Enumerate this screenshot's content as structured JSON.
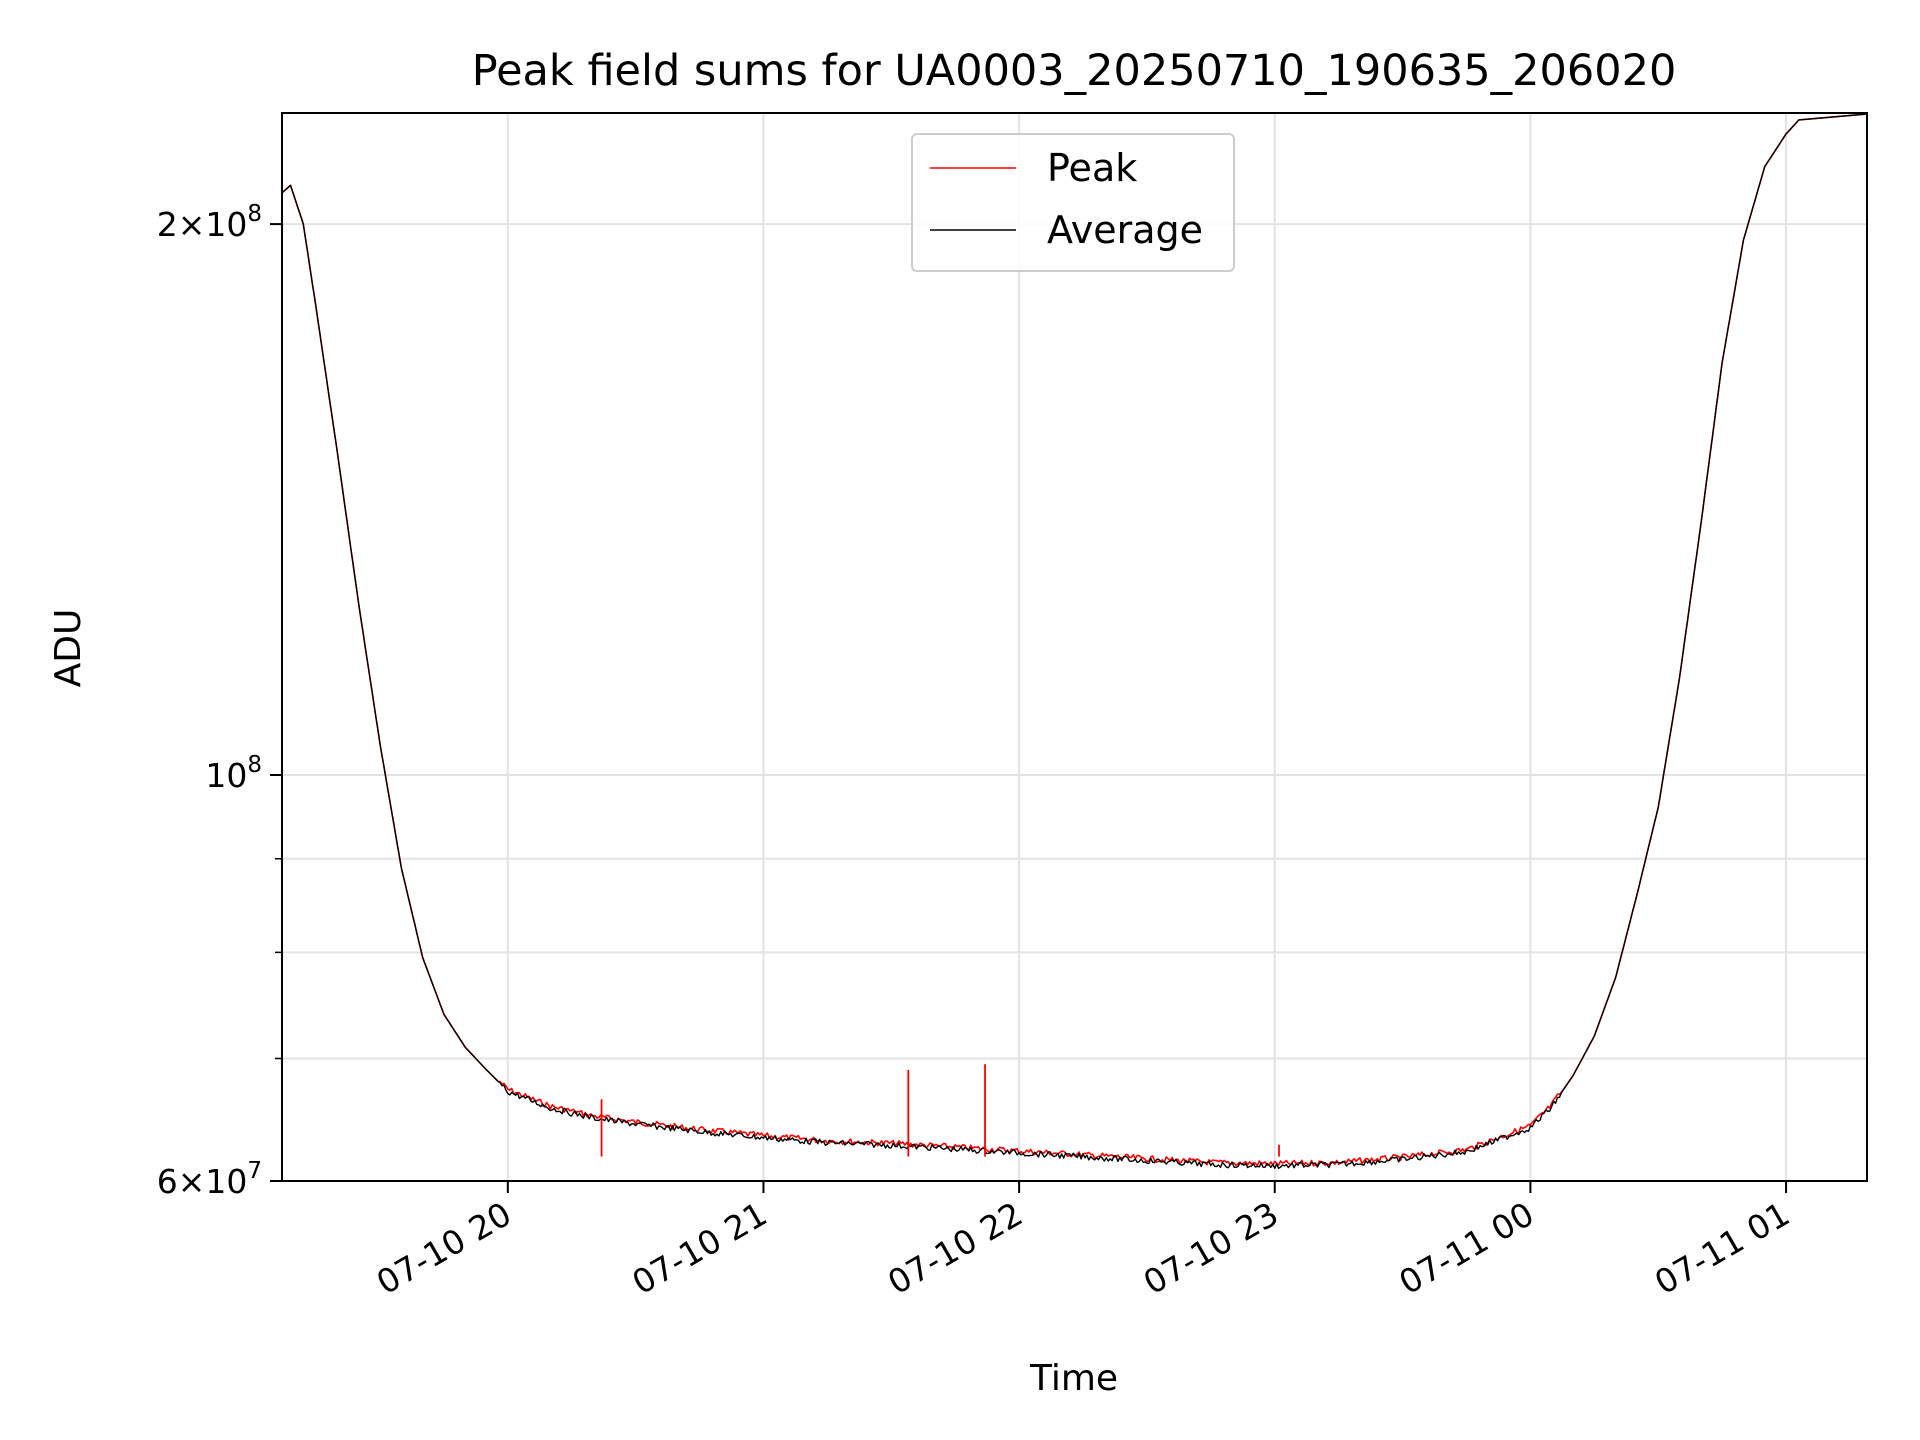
{
  "chart_data": {
    "type": "line",
    "title": "Peak field sums for UA0003_20250710_190635_206020",
    "xlabel": "Time",
    "ylabel": "ADU",
    "yscale": "log",
    "ylim": [
      60000000,
      230000000
    ],
    "xlim": [
      "2025-07-10 19:07",
      "2025-07-11 01:19"
    ],
    "grid": true,
    "legend_position": "top-center",
    "x_ticks": [
      {
        "t": "2025-07-10 20:00",
        "label": "07-10 20"
      },
      {
        "t": "2025-07-10 21:00",
        "label": "07-10 21"
      },
      {
        "t": "2025-07-10 22:00",
        "label": "07-10 22"
      },
      {
        "t": "2025-07-10 23:00",
        "label": "07-10 23"
      },
      {
        "t": "2025-07-11 00:00",
        "label": "07-11 00"
      },
      {
        "t": "2025-07-11 01:00",
        "label": "07-11 01"
      }
    ],
    "y_ticks_major": [
      {
        "value": 60000000,
        "base": "6",
        "exp": "7"
      },
      {
        "value": 100000000,
        "base": "",
        "exp": "8"
      },
      {
        "value": 200000000,
        "base": "2",
        "exp": "8"
      }
    ],
    "y_ticks_minor": [
      70000000,
      80000000,
      90000000
    ],
    "x": [
      "2025-07-10 19:07",
      "2025-07-10 19:09",
      "2025-07-10 19:12",
      "2025-07-10 19:15",
      "2025-07-10 19:20",
      "2025-07-10 19:25",
      "2025-07-10 19:30",
      "2025-07-10 19:35",
      "2025-07-10 19:40",
      "2025-07-10 19:45",
      "2025-07-10 19:50",
      "2025-07-10 19:55",
      "2025-07-10 20:00",
      "2025-07-10 20:10",
      "2025-07-10 20:20",
      "2025-07-10 20:30",
      "2025-07-10 20:45",
      "2025-07-10 21:00",
      "2025-07-10 21:15",
      "2025-07-10 21:30",
      "2025-07-10 21:45",
      "2025-07-10 22:00",
      "2025-07-10 22:15",
      "2025-07-10 22:30",
      "2025-07-10 22:45",
      "2025-07-10 23:00",
      "2025-07-10 23:15",
      "2025-07-10 23:30",
      "2025-07-10 23:45",
      "2025-07-11 00:00",
      "2025-07-11 00:05",
      "2025-07-11 00:10",
      "2025-07-11 00:15",
      "2025-07-11 00:20",
      "2025-07-11 00:25",
      "2025-07-11 00:30",
      "2025-07-11 00:35",
      "2025-07-11 00:40",
      "2025-07-11 00:45",
      "2025-07-11 00:50",
      "2025-07-11 00:55",
      "2025-07-11 01:00",
      "2025-07-11 01:03"
    ],
    "series": [
      {
        "name": "Peak",
        "color": "#ff0000",
        "values": [
          208000000,
          210000000,
          200000000,
          180000000,
          150000000,
          124000000,
          104000000,
          89000000,
          79500000,
          74000000,
          71000000,
          69000000,
          67200000,
          65800000,
          65000000,
          64500000,
          63900000,
          63400000,
          63000000,
          62800000,
          62500000,
          62200000,
          61900000,
          61600000,
          61300000,
          61200000,
          61300000,
          61700000,
          62300000,
          64200000,
          65900000,
          68500000,
          72000000,
          77500000,
          86000000,
          96000000,
          113000000,
          137000000,
          168000000,
          196000000,
          215000000,
          224000000,
          228000000
        ],
        "spikes": [
          {
            "x": "2025-07-10 20:22",
            "y": 66500000
          },
          {
            "x": "2025-07-10 21:34",
            "y": 69000000
          },
          {
            "x": "2025-07-10 21:52",
            "y": 69500000
          },
          {
            "x": "2025-07-10 23:01",
            "y": 62800000
          }
        ]
      },
      {
        "name": "Average",
        "color": "#000000",
        "values": [
          208000000,
          210000000,
          200000000,
          180000000,
          150000000,
          124000000,
          104000000,
          89000000,
          79500000,
          74000000,
          71000000,
          69000000,
          67200000,
          65800000,
          65000000,
          64500000,
          63900000,
          63400000,
          63000000,
          62800000,
          62500000,
          62200000,
          61900000,
          61600000,
          61300000,
          61200000,
          61300000,
          61700000,
          62300000,
          64200000,
          65900000,
          68500000,
          72000000,
          77500000,
          86000000,
          96000000,
          113000000,
          137000000,
          168000000,
          196000000,
          215000000,
          224000000,
          228000000
        ]
      }
    ]
  }
}
